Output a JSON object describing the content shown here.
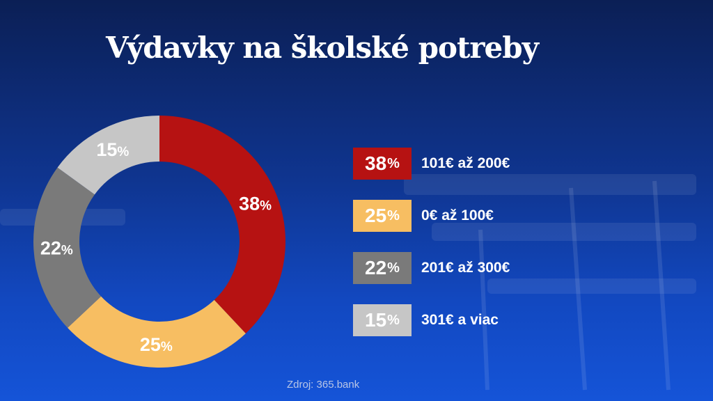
{
  "title": "Výdavky na školské potreby",
  "source": "Zdroj: 365.bank",
  "chart_data": {
    "type": "pie",
    "donut": true,
    "categories": [
      "101€ až 200€",
      "0€ až 100€",
      "201€ až 300€",
      "301€ a viac"
    ],
    "values": [
      38,
      25,
      22,
      15
    ],
    "data_labels": [
      "38",
      "25",
      "22",
      "15"
    ],
    "unit": "%",
    "colors": [
      "#b61212",
      "#f7be62",
      "#7a7a7a",
      "#c6c6c6"
    ],
    "legend_placement": "right"
  }
}
